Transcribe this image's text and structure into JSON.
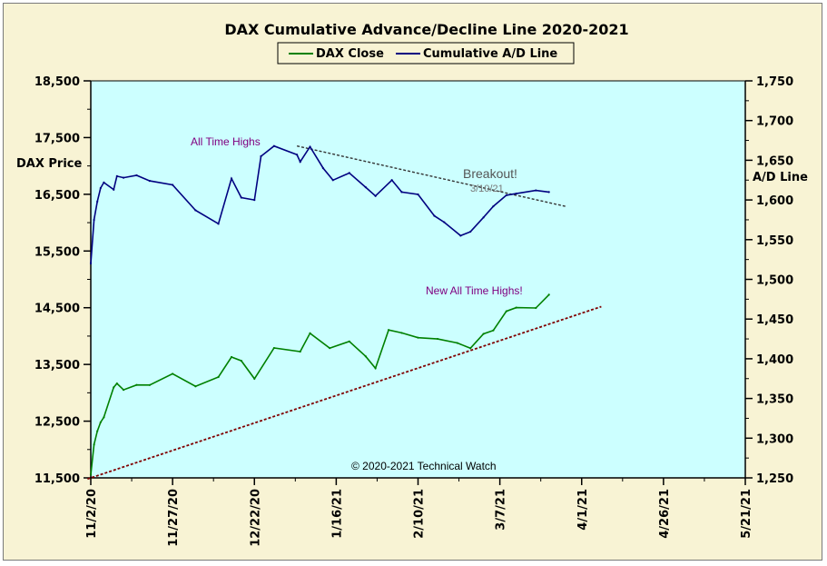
{
  "chart_data": {
    "type": "line",
    "title": "DAX Cumulative  Advance/Decline  Line 2020-2021",
    "ylabel_left": "DAX Price",
    "ylabel_right": "A/D Line",
    "xticks": [
      "11/2/20",
      "11/27/20",
      "12/22/20",
      "1/16/21",
      "2/10/21",
      "3/7/21",
      "4/1/21",
      "4/26/21",
      "5/21/21"
    ],
    "x_range": [
      "2020-11-02",
      "2021-05-21"
    ],
    "y_left_ticks": [
      "11,500",
      "12,500",
      "13,500",
      "14,500",
      "15,500",
      "16,500",
      "17,500",
      "18,500"
    ],
    "y_left_range": [
      11500,
      18500
    ],
    "y_right_ticks": [
      "1,250",
      "1,300",
      "1,350",
      "1,400",
      "1,450",
      "1,500",
      "1,550",
      "1,600",
      "1,650",
      "1,700",
      "1,750"
    ],
    "y_right_range": [
      1250,
      1750
    ],
    "legend_position": "top-center",
    "colors": {
      "plot_bg": "#ccffff",
      "frame_bg": "#f8f3d4",
      "dax": "#008000",
      "ad": "#000080",
      "resistance": "#333333",
      "support": "#800000",
      "annotation": "#800080"
    },
    "series": [
      {
        "name": "DAX Close",
        "axis": "left",
        "x": [
          "2020-11-02",
          "2020-11-03",
          "2020-11-04",
          "2020-11-05",
          "2020-11-06",
          "2020-11-09",
          "2020-11-10",
          "2020-11-12",
          "2020-11-16",
          "2020-11-20",
          "2020-11-27",
          "2020-12-04",
          "2020-12-11",
          "2020-12-15",
          "2020-12-18",
          "2020-12-22",
          "2020-12-28",
          "2021-01-05",
          "2021-01-08",
          "2021-01-14",
          "2021-01-20",
          "2021-01-25",
          "2021-01-28",
          "2021-02-01",
          "2021-02-05",
          "2021-02-10",
          "2021-02-16",
          "2021-02-22",
          "2021-02-26",
          "2021-03-02",
          "2021-03-05",
          "2021-03-09",
          "2021-03-12",
          "2021-03-18",
          "2021-03-22"
        ],
        "values": [
          11556,
          12088,
          12324,
          12480,
          12568,
          13096,
          13164,
          13052,
          13139,
          13137,
          13335,
          13114,
          13278,
          13630,
          13565,
          13247,
          13790,
          13726,
          14050,
          13788,
          13906,
          13643,
          13432,
          14107,
          14056,
          13972,
          13950,
          13878,
          13786,
          14039,
          14100,
          14438,
          14502,
          14495,
          14730
        ]
      },
      {
        "name": "Cumulative A/D Line",
        "axis": "right",
        "x": [
          "2020-11-02",
          "2020-11-03",
          "2020-11-04",
          "2020-11-05",
          "2020-11-06",
          "2020-11-09",
          "2020-11-10",
          "2020-11-12",
          "2020-11-16",
          "2020-11-20",
          "2020-11-27",
          "2020-12-04",
          "2020-12-11",
          "2020-12-15",
          "2020-12-18",
          "2020-12-22",
          "2020-12-24",
          "2020-12-28",
          "2021-01-04",
          "2021-01-05",
          "2021-01-08",
          "2021-01-12",
          "2021-01-15",
          "2021-01-20",
          "2021-01-25",
          "2021-01-28",
          "2021-02-02",
          "2021-02-05",
          "2021-02-10",
          "2021-02-15",
          "2021-02-18",
          "2021-02-23",
          "2021-02-26",
          "2021-03-02",
          "2021-03-05",
          "2021-03-09",
          "2021-03-12",
          "2021-03-18",
          "2021-03-22"
        ],
        "values": [
          1520,
          1575,
          1598,
          1615,
          1622,
          1613,
          1630,
          1628,
          1631,
          1624,
          1619,
          1587,
          1570,
          1627,
          1603,
          1600,
          1655,
          1668,
          1657,
          1648,
          1667,
          1640,
          1625,
          1634,
          1616,
          1605,
          1625,
          1610,
          1607,
          1580,
          1572,
          1555,
          1560,
          1578,
          1592,
          1606,
          1608,
          1612,
          1610
        ]
      }
    ],
    "annotations": {
      "all_time_highs": "All Time Highs",
      "breakout": "Breakout!",
      "breakout_date": "3/10/21",
      "new_highs": "New All Time Highs!",
      "copyright": "© 2020-2021  Technical Watch"
    }
  }
}
